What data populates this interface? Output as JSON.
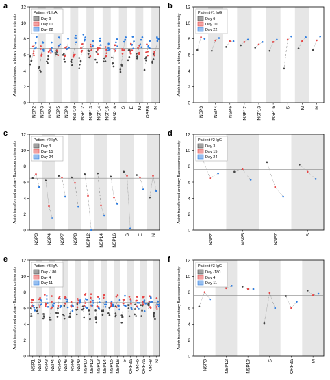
{
  "figure": {
    "ylabel": "Asinh transformed arbitrary fluorescence intensity",
    "colors": {
      "day_early": "#444444",
      "day_mid": "#e64545",
      "day_late": "#2e7de0",
      "band": "#e6e6e6",
      "refline": "#888888"
    }
  },
  "chart_data": [
    {
      "panel": "a",
      "type": "scatter",
      "legend_title": "Patient #1 IgA",
      "legend": [
        "Day 6",
        "Day 10",
        "Day 22"
      ],
      "categories": [
        "NSP2",
        "NSP3",
        "NSP4",
        "NSP5",
        "NSP6",
        "NSP10",
        "NSP12",
        "NSP13",
        "NSP14",
        "NSP15",
        "NSP16",
        "S",
        "E",
        "M",
        "ORF8",
        "N"
      ],
      "ylim": [
        0,
        12
      ],
      "yticks": [
        0,
        2,
        4,
        6,
        8,
        10,
        12
      ],
      "refline": 6.8,
      "series": [
        {
          "name": "Day 6",
          "values": [
            5.2,
            4.4,
            5.6,
            5.8,
            5.5,
            5.4,
            5.0,
            5.8,
            5.6,
            5.7,
            5.3,
            4.4,
            5.9,
            6.1,
            4.9,
            5.4
          ]
        },
        {
          "name": "Day 10",
          "values": [
            6.6,
            6.3,
            6.5,
            6.7,
            6.4,
            6.6,
            6.7,
            6.5,
            6.8,
            6.6,
            6.5,
            6.4,
            6.8,
            6.9,
            6.6,
            6.5
          ]
        },
        {
          "name": "Day 22",
          "values": [
            7.5,
            6.9,
            7.0,
            7.4,
            7.5,
            7.7,
            7.9,
            7.3,
            7.4,
            7.3,
            7.2,
            7.8,
            7.5,
            7.6,
            7.4,
            7.7
          ]
        }
      ]
    },
    {
      "panel": "b",
      "type": "scatter",
      "legend_title": "Patient #1 IgG",
      "legend": [
        "Day 6",
        "Day 10",
        "Day 22"
      ],
      "categories": [
        "NSP3",
        "NSP4",
        "NSP6",
        "NSP12",
        "NSP13",
        "NSP16",
        "S",
        "M",
        "N"
      ],
      "ylim": [
        0,
        12
      ],
      "yticks": [
        0,
        2,
        4,
        6,
        8,
        10,
        12
      ],
      "refline": 7.6,
      "series": [
        {
          "name": "Day 6",
          "values": [
            6.6,
            6.5,
            7.0,
            7.2,
            6.9,
            6.5,
            4.3,
            6.8,
            6.6
          ]
        },
        {
          "name": "Day 10",
          "values": [
            8.2,
            7.8,
            7.7,
            7.6,
            7.3,
            7.6,
            7.9,
            7.7,
            7.8
          ]
        },
        {
          "name": "Day 22",
          "values": [
            8.0,
            8.1,
            7.7,
            7.9,
            7.6,
            7.9,
            8.3,
            8.2,
            8.3
          ]
        }
      ]
    },
    {
      "panel": "c",
      "type": "scatter",
      "legend_title": "Patient #2 IgA",
      "legend": [
        "Day 3",
        "Day 15",
        "Day 24"
      ],
      "categories": [
        "NSP3",
        "NSP4",
        "NSP7",
        "NSP8",
        "NSP12",
        "NSP14",
        "NSP16",
        "S",
        "E",
        "N"
      ],
      "ylim": [
        0,
        12
      ],
      "yticks": [
        0,
        2,
        4,
        6,
        8,
        10,
        12
      ],
      "refline": 6.5,
      "series": [
        {
          "name": "Day 3",
          "values": [
            6.5,
            6.2,
            6.8,
            6.6,
            7.0,
            7.1,
            6.7,
            7.3,
            6.9,
            4.1
          ]
        },
        {
          "name": "Day 15",
          "values": [
            7.0,
            3.0,
            6.6,
            5.9,
            4.3,
            3.1,
            4.1,
            6.8,
            6.6,
            6.8
          ]
        },
        {
          "name": "Day 24",
          "values": [
            5.4,
            1.5,
            4.2,
            2.9,
            0.0,
            1.8,
            3.3,
            0.2,
            5.1,
            4.9
          ]
        }
      ]
    },
    {
      "panel": "d",
      "type": "scatter",
      "legend_title": "Patient #2 IgG",
      "legend": [
        "Day 3",
        "Day 15",
        "Day 24"
      ],
      "categories": [
        "NSP2",
        "NSP5",
        "NSP7",
        "S"
      ],
      "ylim": [
        0,
        12
      ],
      "yticks": [
        0,
        2,
        4,
        6,
        8,
        10,
        12
      ],
      "refline": 7.6,
      "series": [
        {
          "name": "Day 3",
          "values": [
            9.1,
            7.3,
            8.5,
            8.2
          ]
        },
        {
          "name": "Day 15",
          "values": [
            6.5,
            7.6,
            5.4,
            7.3
          ]
        },
        {
          "name": "Day 24",
          "values": [
            7.1,
            6.3,
            4.2,
            6.4
          ]
        }
      ]
    },
    {
      "panel": "e",
      "type": "scatter",
      "legend_title": "Patient #3 IgA",
      "legend": [
        "Day -180",
        "Day 4",
        "Day 11"
      ],
      "categories": [
        "NSP1",
        "NSP2",
        "NSP3",
        "NSP4",
        "NSP5",
        "NSP6",
        "NSP8",
        "NSP9",
        "NSP10",
        "NSP12",
        "NSP13",
        "NSP14",
        "NSP15",
        "NSP16",
        "S",
        "ORF3a",
        "ORF6",
        "ORF7a",
        "ORF8",
        "N"
      ],
      "ylim": [
        0,
        12
      ],
      "yticks": [
        0,
        2,
        4,
        6,
        8,
        10,
        12
      ],
      "refline": 6.7,
      "series": [
        {
          "name": "Day -180",
          "values": [
            5.4,
            5.6,
            4.8,
            5.3,
            5.7,
            5.5,
            5.4,
            5.8,
            5.6,
            5.2,
            5.0,
            5.3,
            5.7,
            5.5,
            4.9,
            5.6,
            5.8,
            5.7,
            5.9,
            5.4
          ]
        },
        {
          "name": "Day 4",
          "values": [
            6.7,
            6.8,
            6.9,
            6.7,
            6.8,
            6.9,
            6.8,
            6.7,
            7.0,
            7.1,
            6.8,
            6.9,
            6.7,
            6.9,
            7.0,
            6.8,
            6.7,
            6.9,
            6.8,
            6.6
          ]
        },
        {
          "name": "Day 11",
          "values": [
            6.4,
            6.6,
            6.8,
            6.3,
            6.5,
            6.7,
            6.2,
            6.4,
            6.6,
            6.9,
            6.5,
            6.7,
            6.4,
            6.6,
            6.8,
            6.3,
            6.5,
            6.4,
            6.6,
            6.3
          ]
        }
      ]
    },
    {
      "panel": "f",
      "type": "scatter",
      "legend_title": "Patient #3 IgG",
      "legend": [
        "Day -180",
        "Day 4",
        "Day 11"
      ],
      "categories": [
        "NSP3",
        "NSP12",
        "NSP13",
        "S",
        "ORF3a",
        "M"
      ],
      "ylim": [
        0,
        12
      ],
      "yticks": [
        0,
        2,
        4,
        6,
        8,
        10,
        12
      ],
      "refline": 7.6,
      "series": [
        {
          "name": "Day -180",
          "values": [
            6.2,
            9.3,
            8.7,
            4.1,
            7.5,
            8.2
          ]
        },
        {
          "name": "Day 4",
          "values": [
            8.0,
            8.5,
            8.4,
            7.9,
            6.0,
            7.6
          ]
        },
        {
          "name": "Day 11",
          "values": [
            7.1,
            8.8,
            8.4,
            6.0,
            6.8,
            7.8
          ]
        }
      ]
    }
  ]
}
